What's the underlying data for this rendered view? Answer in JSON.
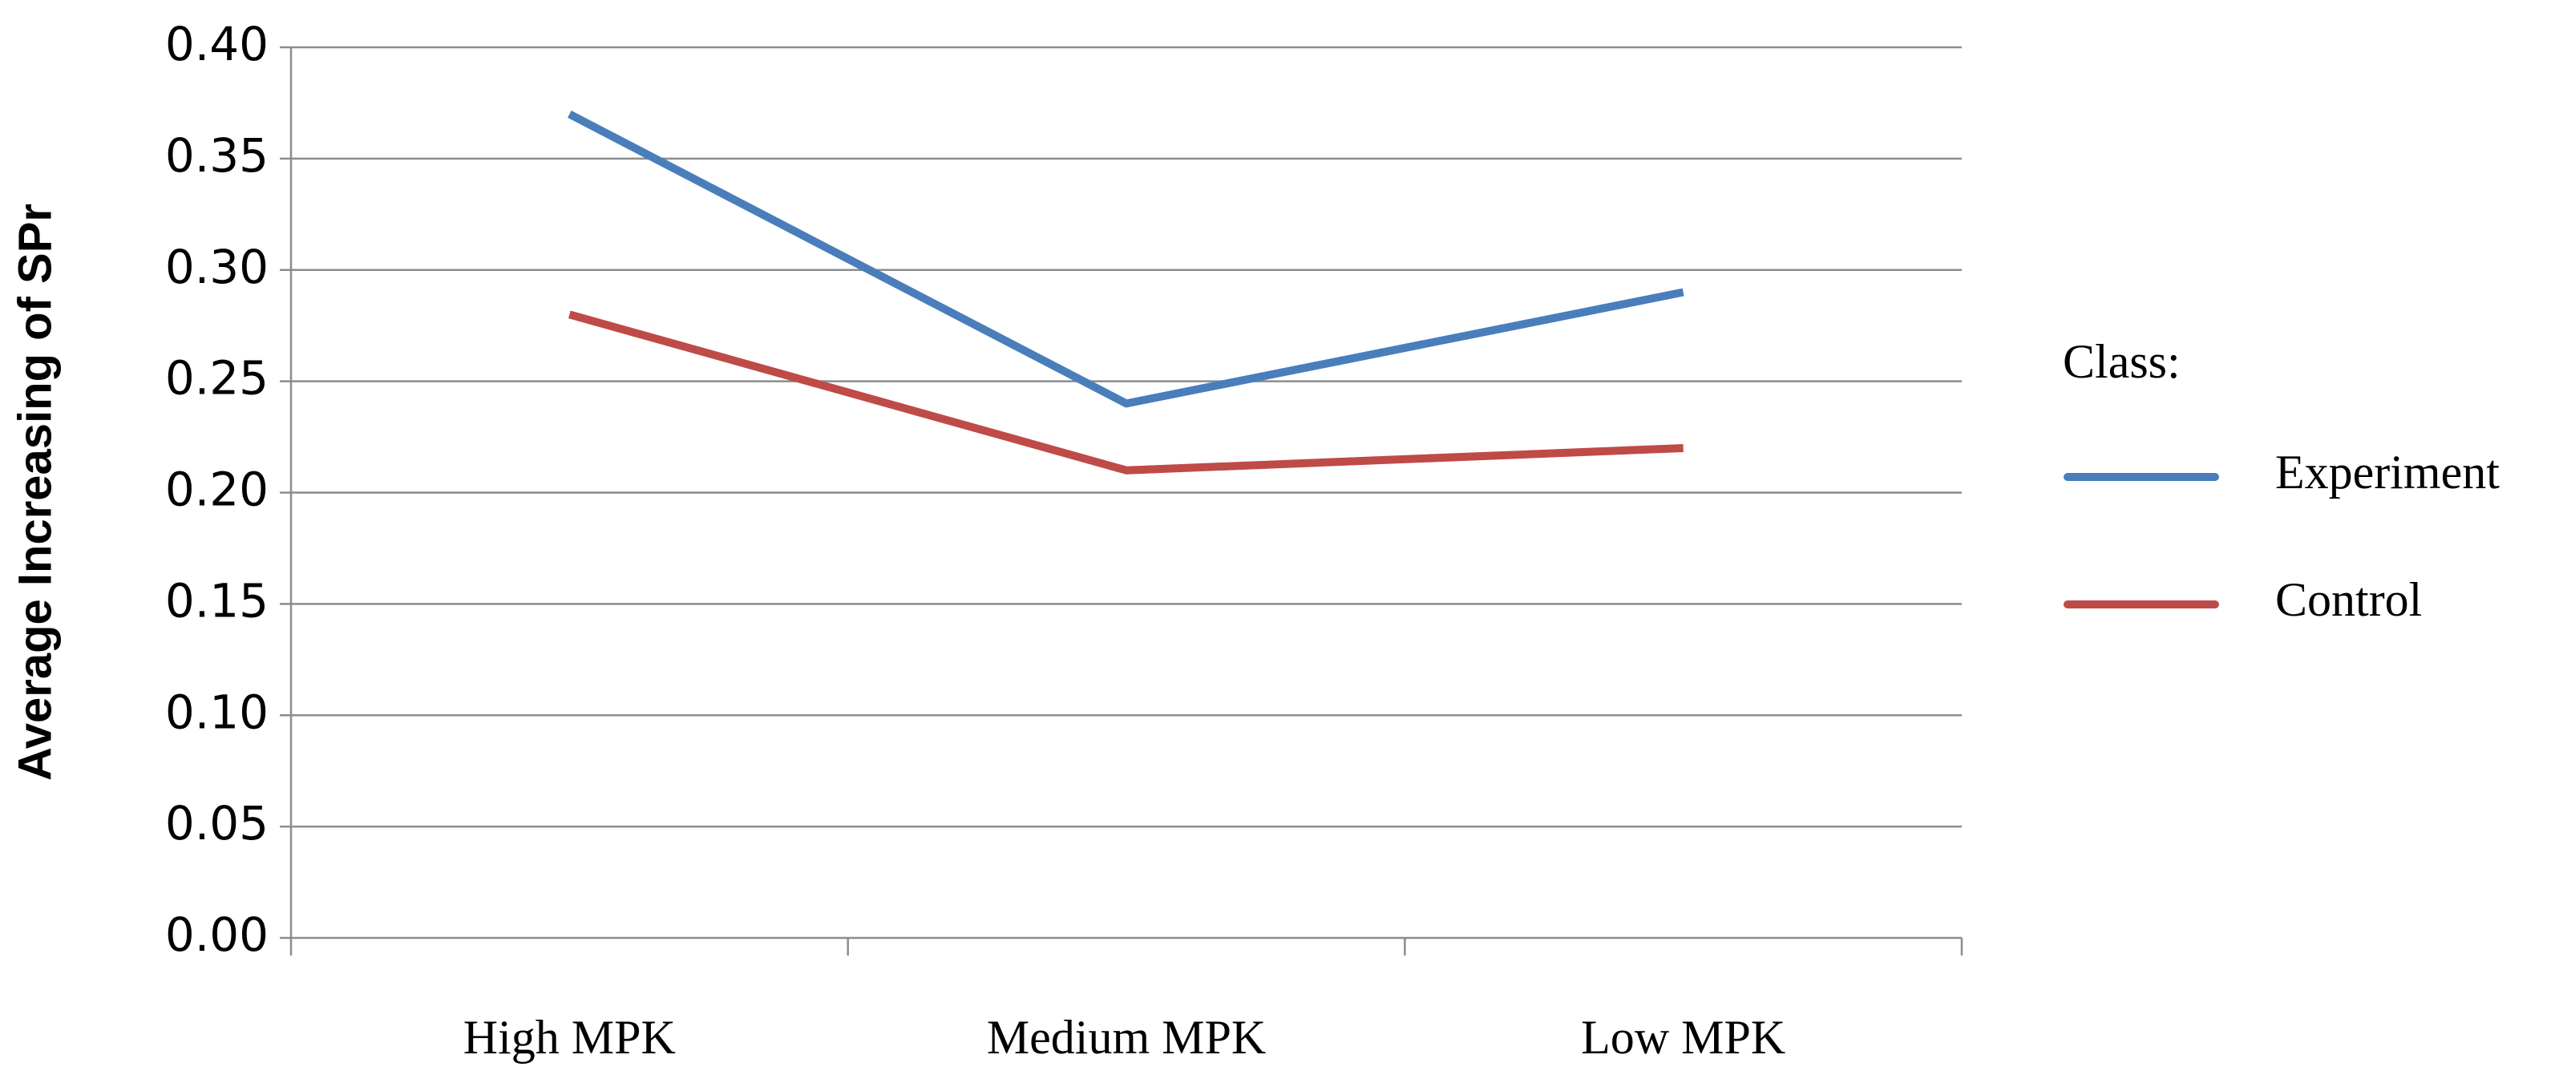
{
  "chart_data": {
    "type": "line",
    "y_label": "Average Increasing of SPr",
    "categories": [
      "High MPK",
      "Medium MPK",
      "Low MPK"
    ],
    "series": [
      {
        "name": "Experiment",
        "color": "#4a7ebb",
        "values": [
          0.37,
          0.24,
          0.29
        ]
      },
      {
        "name": "Control",
        "color": "#be4b48",
        "values": [
          0.28,
          0.21,
          0.22
        ]
      }
    ],
    "legend_title": "Class:",
    "legend_position": "right",
    "ylim": [
      0,
      0.4
    ],
    "yticks": [
      {
        "value": 0,
        "label": "0.00"
      },
      0.05,
      {
        "value": 0.1,
        "label": "0.10"
      },
      0.15,
      {
        "value": 0.2,
        "label": "0.20"
      },
      0.25,
      {
        "value": 0.3,
        "label": "0.30"
      },
      0.35,
      {
        "value": 0.4,
        "label": "0.40"
      }
    ],
    "grid": true
  }
}
